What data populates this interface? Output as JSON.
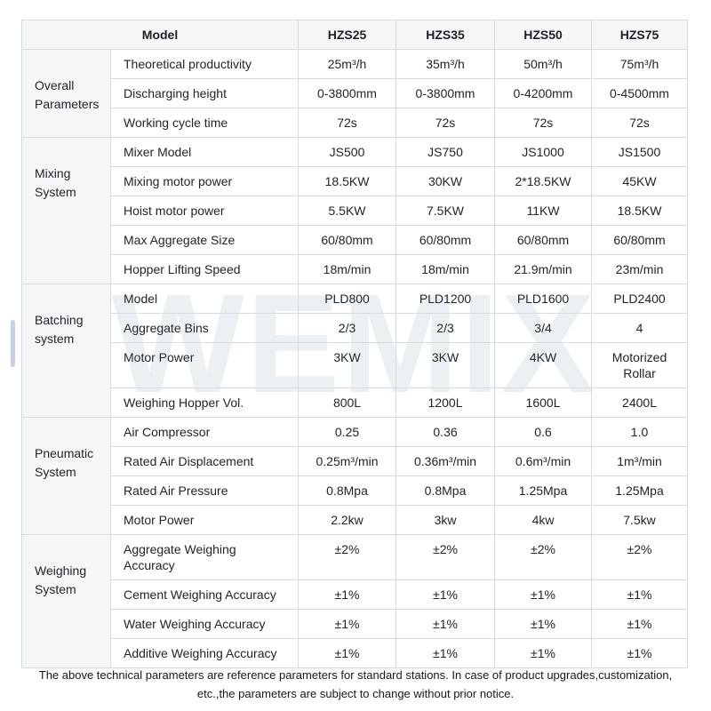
{
  "watermark_text": "WEMIX",
  "table": {
    "header": {
      "model_label": "Model",
      "columns": [
        "HZS25",
        "HZS35",
        "HZS50",
        "HZS75"
      ]
    },
    "groups": [
      {
        "label": "Overall Parameters",
        "rows": [
          {
            "param": "Theoretical productivity",
            "values": [
              "25m³/h",
              "35m³/h",
              "50m³/h",
              "75m³/h"
            ]
          },
          {
            "param": "Discharging height",
            "values": [
              "0-3800mm",
              "0-3800mm",
              "0-4200mm",
              "0-4500mm"
            ]
          },
          {
            "param": "Working cycle time",
            "values": [
              "72s",
              "72s",
              "72s",
              "72s"
            ]
          }
        ]
      },
      {
        "label": "Mixing System",
        "rows": [
          {
            "param": "Mixer Model",
            "values": [
              "JS500",
              "JS750",
              "JS1000",
              "JS1500"
            ]
          },
          {
            "param": "Mixing motor power",
            "values": [
              "18.5KW",
              "30KW",
              "2*18.5KW",
              "45KW"
            ]
          },
          {
            "param": "Hoist motor power",
            "values": [
              "5.5KW",
              "7.5KW",
              "11KW",
              "18.5KW"
            ]
          },
          {
            "param": "Max Aggregate Size",
            "values": [
              "60/80mm",
              "60/80mm",
              "60/80mm",
              "60/80mm"
            ]
          },
          {
            "param": "Hopper Lifting Speed",
            "values": [
              "18m/min",
              "18m/min",
              "21.9m/min",
              "23m/min"
            ]
          }
        ]
      },
      {
        "label": "Batching system",
        "rows": [
          {
            "param": "Model",
            "values": [
              "PLD800",
              "PLD1200",
              "PLD1600",
              "PLD2400"
            ]
          },
          {
            "param": "Aggregate Bins",
            "values": [
              "2/3",
              "2/3",
              "3/4",
              "4"
            ]
          },
          {
            "param": "Motor Power",
            "values": [
              "3KW",
              "3KW",
              "4KW",
              "Motorized Rollar"
            ]
          },
          {
            "param": "Weighing Hopper Vol.",
            "values": [
              "800L",
              "1200L",
              "1600L",
              "2400L"
            ]
          }
        ]
      },
      {
        "label": "Pneumatic System",
        "rows": [
          {
            "param": "Air Compressor",
            "values": [
              "0.25",
              "0.36",
              "0.6",
              "1.0"
            ]
          },
          {
            "param": "Rated Air Displacement",
            "values": [
              "0.25m³/min",
              "0.36m³/min",
              "0.6m³/min",
              "1m³/min"
            ]
          },
          {
            "param": "Rated Air Pressure",
            "values": [
              "0.8Mpa",
              "0.8Mpa",
              "1.25Mpa",
              "1.25Mpa"
            ]
          },
          {
            "param": "Motor Power",
            "values": [
              "2.2kw",
              "3kw",
              "4kw",
              "7.5kw"
            ]
          }
        ]
      },
      {
        "label": "Weighing System",
        "rows": [
          {
            "param": "Aggregate Weighing Accuracy",
            "values": [
              "±2%",
              "±2%",
              "±2%",
              "±2%"
            ]
          },
          {
            "param": "Cement Weighing Accuracy",
            "values": [
              "±1%",
              "±1%",
              "±1%",
              "±1%"
            ]
          },
          {
            "param": "Water Weighing Accuracy",
            "values": [
              "±1%",
              "±1%",
              "±1%",
              "±1%"
            ]
          },
          {
            "param": "Additive Weighing Accuracy",
            "values": [
              "±1%",
              "±1%",
              "±1%",
              "±1%"
            ]
          }
        ]
      }
    ]
  },
  "footer": {
    "line1": "The above technical parameters are reference parameters for standard stations. In case of product upgrades,customization,",
    "line2": "etc.,the parameters are subject to change without prior notice."
  },
  "colors": {
    "header_bg": "#f5f6f7",
    "border": "#d9dcdf",
    "text": "#21252b",
    "watermark": "#edf0f3",
    "scroll_indicator": "#c8d1e3"
  }
}
